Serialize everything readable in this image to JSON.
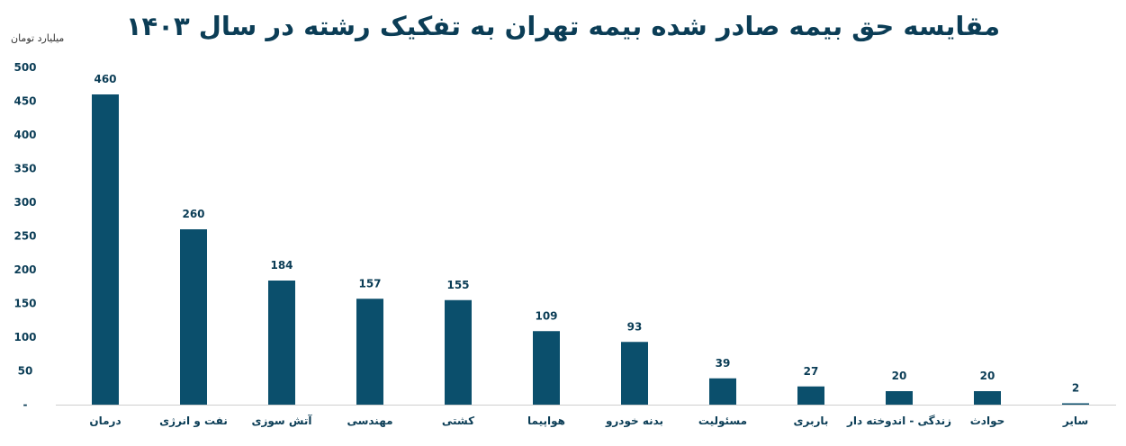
{
  "chart_data": {
    "type": "bar",
    "title": "مقایسه حق بیمه صادر شده بیمه تهران به تفکیک رشته در سال ۱۴۰۳",
    "ylabel": "میلیارد تومان",
    "xlabel": "",
    "ylim": [
      0,
      500
    ],
    "yticks": [
      "500",
      "450",
      "400",
      "350",
      "300",
      "250",
      "200",
      "150",
      "100",
      "50",
      "-"
    ],
    "categories": [
      "درمان",
      "نفت و انرژی",
      "آتش سوزی",
      "مهندسی",
      "کشتی",
      "هواپیما",
      "بدنه خودرو",
      "مسئولیت",
      "باربری",
      "زندگی - اندوخته دار",
      "حوادث",
      "سایر"
    ],
    "values": [
      460,
      260,
      184,
      157,
      155,
      109,
      93,
      39,
      27,
      20,
      20,
      2
    ],
    "bar_color": "#0b4f6c",
    "grid": false
  }
}
